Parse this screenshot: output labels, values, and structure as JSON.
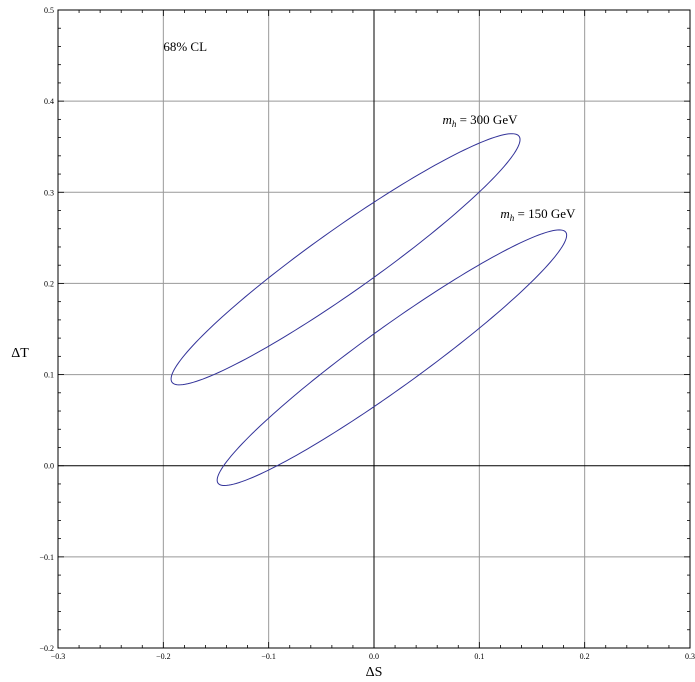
{
  "chart_data": {
    "type": "line",
    "xlabel": "ΔS",
    "ylabel": "ΔT",
    "xlim": [
      -0.3,
      0.3
    ],
    "ylim": [
      -0.2,
      0.5
    ],
    "grid": true,
    "x_ticks": [
      -0.3,
      -0.2,
      -0.1,
      0.0,
      0.1,
      0.2,
      0.3
    ],
    "x_tick_labels": [
      "−0.3",
      "−0.2",
      "−0.1",
      "0.0",
      "0.1",
      "0.2",
      "0.3"
    ],
    "y_ticks": [
      -0.2,
      -0.1,
      0.0,
      0.1,
      0.2,
      0.3,
      0.4,
      0.5
    ],
    "y_tick_labels": [
      "−0.2",
      "−0.1",
      "0.0",
      "0.1",
      "0.2",
      "0.3",
      "0.4",
      "0.5"
    ],
    "annotations": [
      {
        "text": "68% CL",
        "x": -0.2,
        "y": 0.455
      },
      {
        "main": "m",
        "sub": "h",
        "rest": " = 300 GeV",
        "x": 0.065,
        "y": 0.375
      },
      {
        "main": "m",
        "sub": "h",
        "rest": " = 150 GeV",
        "x": 0.12,
        "y": 0.272
      }
    ],
    "series": [
      {
        "color": "#333399",
        "ellipse": {
          "center": [
            -0.027,
            0.2265
          ],
          "semi_major": 0.213,
          "semi_minor": 0.0325,
          "angle_deg": 39.5
        }
      },
      {
        "color": "#333399",
        "ellipse": {
          "center": [
            0.017,
            0.1185
          ],
          "semi_major": 0.215,
          "semi_minor": 0.031,
          "angle_deg": 40
        }
      }
    ]
  }
}
